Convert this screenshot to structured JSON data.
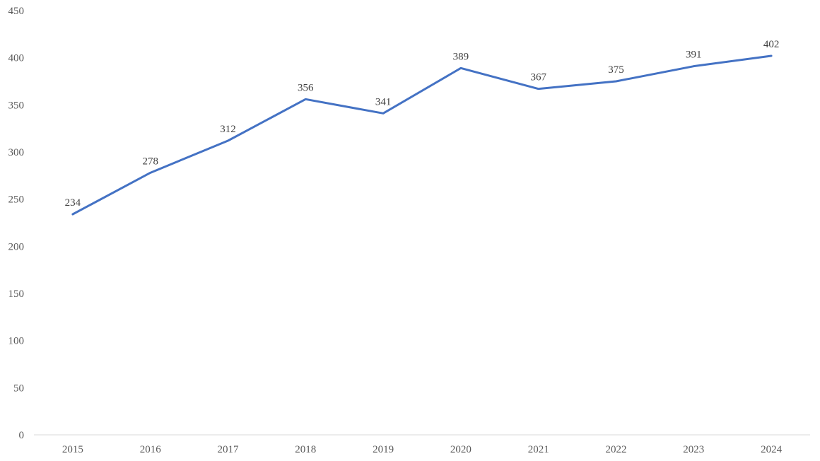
{
  "chart_data": {
    "type": "line",
    "title": "",
    "xlabel": "",
    "ylabel": "",
    "categories": [
      "2015",
      "2016",
      "2017",
      "2018",
      "2019",
      "2020",
      "2021",
      "2022",
      "2023",
      "2024"
    ],
    "series": [
      {
        "values": [
          234,
          278,
          312,
          356,
          341,
          389,
          367,
          375,
          391,
          402
        ],
        "color": "#4472C4"
      }
    ],
    "ylim": [
      0,
      450
    ],
    "yticks": [
      0,
      50,
      100,
      150,
      200,
      250,
      300,
      350,
      400,
      450
    ],
    "data_labels": true,
    "grid": false,
    "legend": "none",
    "colors": {
      "line": "#4472C4",
      "axis": "#d9d9d9",
      "tick_text": "#595959",
      "label_text": "#404040"
    }
  }
}
